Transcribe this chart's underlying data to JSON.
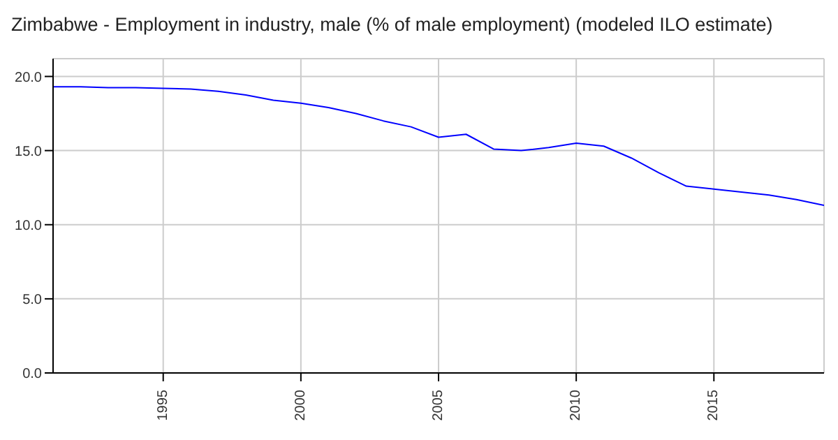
{
  "chart_data": {
    "type": "line",
    "title": "Zimbabwe - Employment in industry, male (% of male employment) (modeled ILO estimate)",
    "x": [
      1991,
      1992,
      1993,
      1994,
      1995,
      1996,
      1997,
      1998,
      1999,
      2000,
      2001,
      2002,
      2003,
      2004,
      2005,
      2006,
      2007,
      2008,
      2009,
      2010,
      2011,
      2012,
      2013,
      2014,
      2015,
      2016,
      2017,
      2018,
      2019
    ],
    "series": [
      {
        "color": "#0000ff",
        "values": [
          19.3,
          19.3,
          19.25,
          19.25,
          19.2,
          19.15,
          19.0,
          18.75,
          18.4,
          18.2,
          17.9,
          17.5,
          17.0,
          16.6,
          15.9,
          16.1,
          15.1,
          15.0,
          15.2,
          15.5,
          15.3,
          14.5,
          13.5,
          12.6,
          12.4,
          12.2,
          12.0,
          11.7,
          11.3
        ]
      }
    ],
    "xlim": [
      1991,
      2019
    ],
    "xticks": [
      1995,
      2000,
      2005,
      2010,
      2015
    ],
    "ylim": [
      0,
      21.2
    ],
    "yticks": [
      {
        "value": 0,
        "label": "0.0"
      },
      {
        "value": 5,
        "label": "5.0"
      },
      {
        "value": 10,
        "label": "10.0"
      },
      {
        "value": 15,
        "label": "15.0"
      },
      {
        "value": 20,
        "label": "20.0"
      }
    ],
    "grid": true,
    "marker": "none",
    "line_style": "solid"
  }
}
